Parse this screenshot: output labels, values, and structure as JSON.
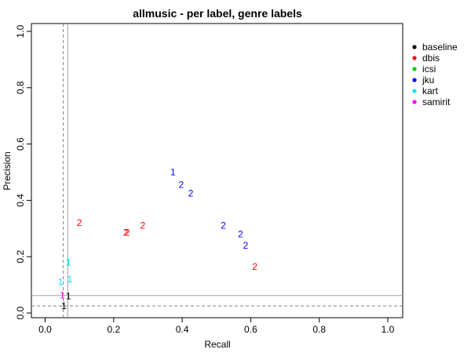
{
  "chart_data": {
    "type": "scatter",
    "title": "allmusic - per label, genre labels",
    "xlabel": "Recall",
    "ylabel": "Precision",
    "xlim": [
      0,
      1
    ],
    "ylim": [
      0,
      1
    ],
    "xticks": [
      "0.0",
      "0.2",
      "0.4",
      "0.6",
      "0.8",
      "1.0"
    ],
    "yticks": [
      "0.0",
      "0.2",
      "0.4",
      "0.6",
      "0.8",
      "1.0"
    ],
    "grid": false,
    "legend_position": "right",
    "reference_lines": {
      "dashed_vertical_x": 0.053,
      "solid_vertical_x": 0.066,
      "dashed_horizontal_y": 0.025,
      "solid_horizontal_y": 0.062
    },
    "series": [
      {
        "name": "baseline",
        "color": "#000000",
        "points": [
          {
            "x": 0.055,
            "y": 0.025,
            "label": "1"
          },
          {
            "x": 0.068,
            "y": 0.06,
            "label": "1"
          }
        ]
      },
      {
        "name": "dbis",
        "color": "#ff0000",
        "points": [
          {
            "x": 0.1,
            "y": 0.32,
            "label": "2"
          },
          {
            "x": 0.235,
            "y": 0.285,
            "label": "2"
          },
          {
            "x": 0.24,
            "y": 0.285,
            "label": "2"
          },
          {
            "x": 0.285,
            "y": 0.31,
            "label": "2"
          },
          {
            "x": 0.612,
            "y": 0.165,
            "label": "2"
          }
        ]
      },
      {
        "name": "icsi",
        "color": "#00cd00",
        "points": []
      },
      {
        "name": "jku",
        "color": "#0000ff",
        "points": [
          {
            "x": 0.373,
            "y": 0.5,
            "label": "1"
          },
          {
            "x": 0.397,
            "y": 0.455,
            "label": "2"
          },
          {
            "x": 0.425,
            "y": 0.425,
            "label": "2"
          },
          {
            "x": 0.52,
            "y": 0.31,
            "label": "2"
          },
          {
            "x": 0.57,
            "y": 0.28,
            "label": "2"
          },
          {
            "x": 0.585,
            "y": 0.24,
            "label": "2"
          }
        ]
      },
      {
        "name": "kart",
        "color": "#00e5ee",
        "points": [
          {
            "x": 0.068,
            "y": 0.18,
            "label": "1"
          },
          {
            "x": 0.045,
            "y": 0.11,
            "label": "1"
          },
          {
            "x": 0.072,
            "y": 0.12,
            "label": "1"
          }
        ]
      },
      {
        "name": "samirit",
        "color": "#ff00ff",
        "points": [
          {
            "x": 0.05,
            "y": 0.062,
            "label": "1"
          }
        ]
      }
    ]
  }
}
